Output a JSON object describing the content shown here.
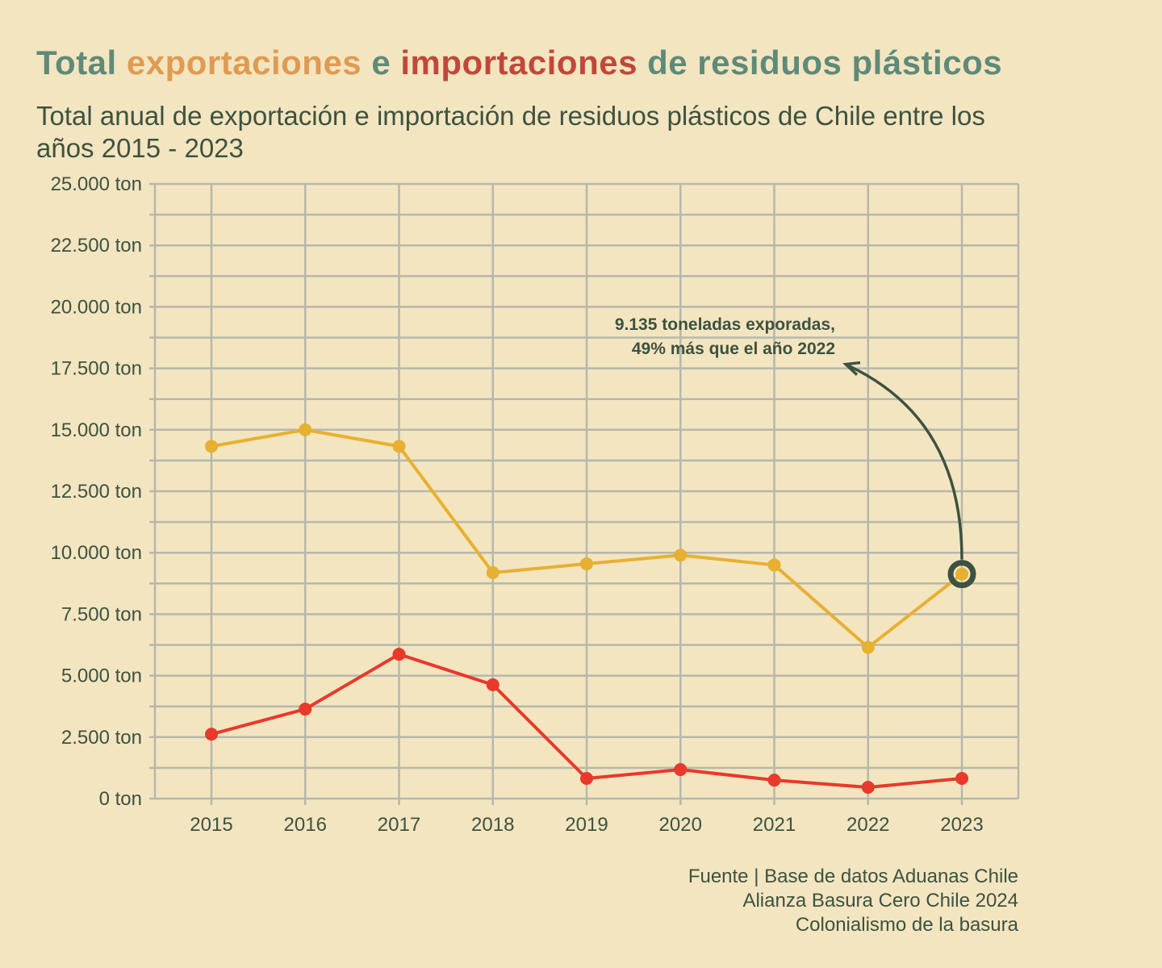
{
  "title_parts": [
    {
      "text": "Total ",
      "color": "#5f8a7a"
    },
    {
      "text": "exportaciones",
      "color": "#e09a52"
    },
    {
      "text": " e ",
      "color": "#5f8a7a"
    },
    {
      "text": "importaciones",
      "color": "#c0483a"
    },
    {
      "text": " de residuos plásticos",
      "color": "#5f8a7a"
    }
  ],
  "source": [
    "Fuente | Base de datos Aduanas Chile",
    "Alianza Basura Cero Chile 2024",
    "Colonialismo de la basura"
  ],
  "chart_data": {
    "type": "line",
    "title": "Total exportaciones e importaciones de residuos plásticos",
    "subtitle": "Total anual de exportación e importación de residuos plásticos de Chile entre los años 2015 - 2023",
    "categories": [
      "2015",
      "2016",
      "2017",
      "2018",
      "2019",
      "2020",
      "2021",
      "2022",
      "2023"
    ],
    "ylim": [
      0,
      25000
    ],
    "yticks": [
      0,
      2500,
      5000,
      7500,
      10000,
      12500,
      15000,
      17500,
      20000,
      22500,
      25000
    ],
    "ytick_labels": [
      "0 ton",
      "2.500 ton",
      "5.000 ton",
      "7.500 ton",
      "10.000 ton",
      "12.500 ton",
      "15.000 ton",
      "17.500 ton",
      "20.000 ton",
      "22.500 ton",
      "25.000 ton"
    ],
    "grid": true,
    "series": [
      {
        "key": "exportaciones",
        "color": "#e8b030",
        "values": [
          14330,
          15000,
          14330,
          9190,
          9550,
          9900,
          9500,
          6150,
          9135
        ]
      },
      {
        "key": "importaciones",
        "color": "#e8392c",
        "values": [
          2620,
          3640,
          5870,
          4630,
          820,
          1180,
          750,
          460,
          820
        ]
      }
    ],
    "annotation": {
      "lines": [
        "9.135 toneladas exporadas,",
        "49% más que el año 2022"
      ],
      "category": "2023",
      "value": 9135,
      "color": "#3d5240"
    }
  }
}
